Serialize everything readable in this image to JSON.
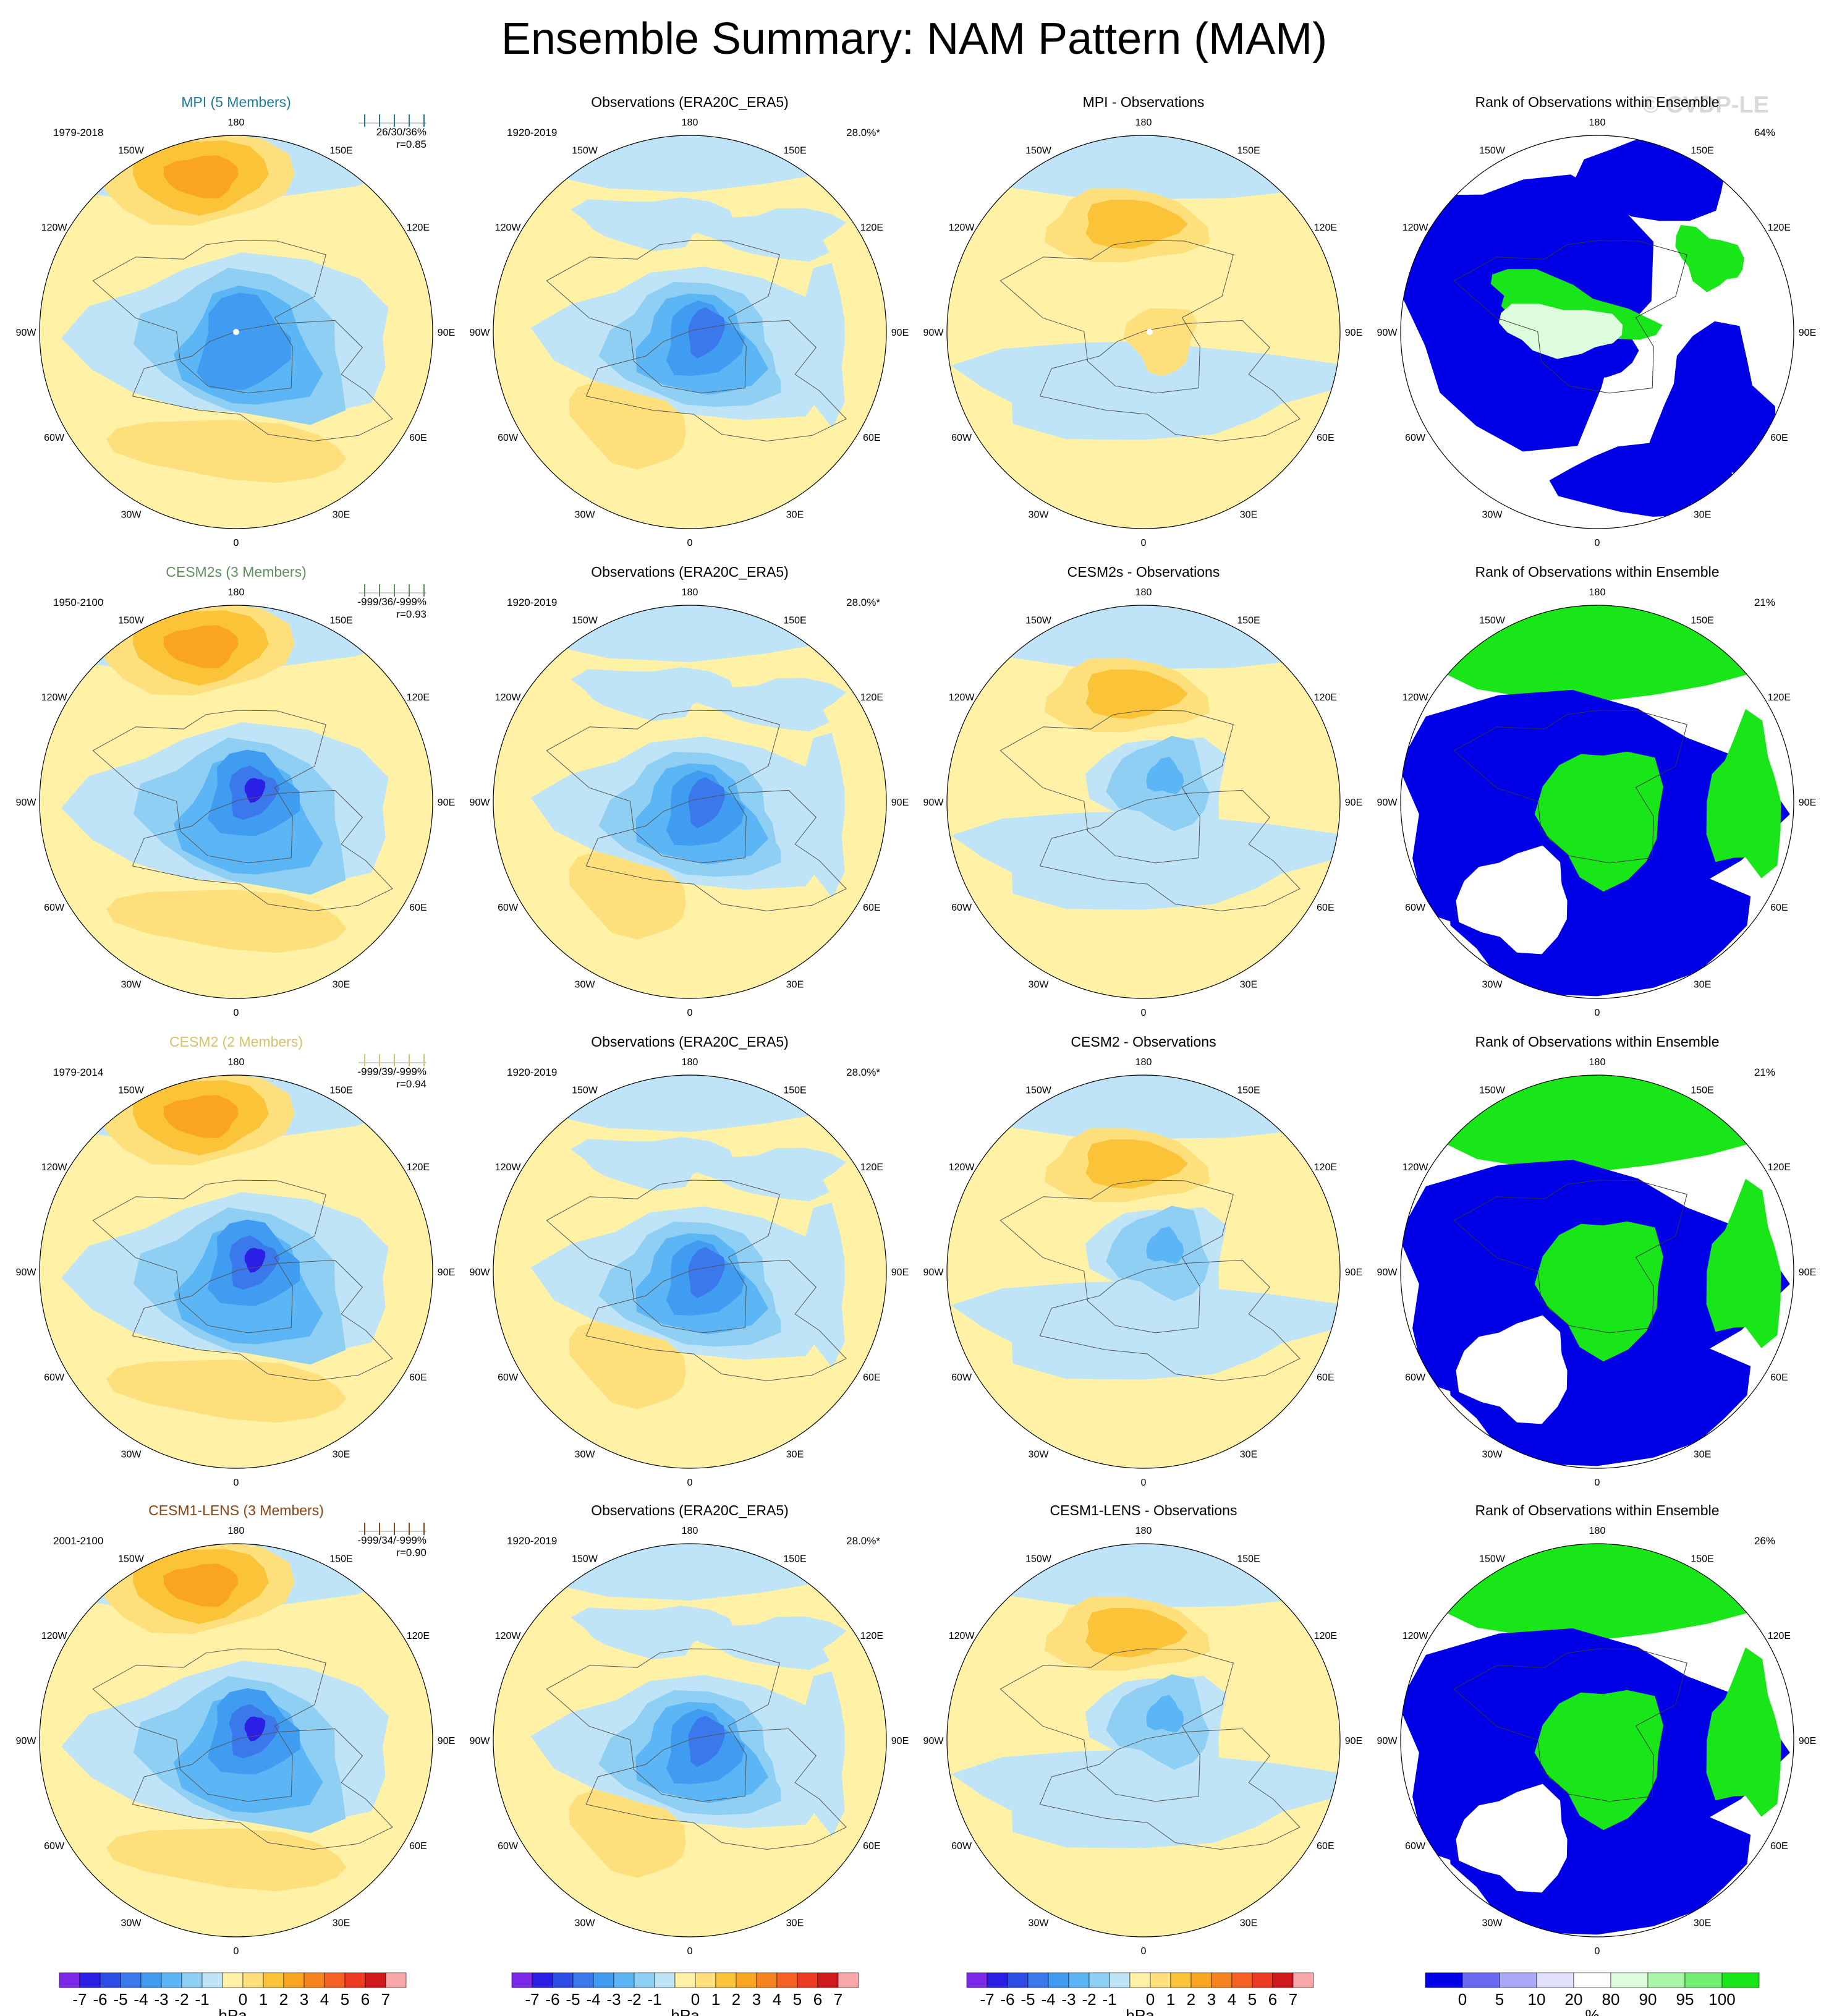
{
  "title": "Ensemble Summary: NAM Pattern (MAM)",
  "watermark": "© CVDP-LE",
  "colors": {
    "neg": [
      "#7b28e8",
      "#2b1fe6",
      "#2e4de6",
      "#3a78ec",
      "#3f9cf0",
      "#5cb6f5",
      "#8fcff4",
      "#bfe3f7"
    ],
    "pos": [
      "#fff2a6",
      "#fde07c",
      "#fbc438",
      "#f9a521",
      "#f88420",
      "#f56224",
      "#ee3a22",
      "#d0191e",
      "#f7a7a7"
    ],
    "rank": [
      "#0000e6",
      "#6a6af2",
      "#a9a9f7",
      "#e0e0fc",
      "#ffffff",
      "#ddfcdd",
      "#a8f5a8",
      "#72ef72",
      "#19e619"
    ],
    "model_titles": {
      "MPI": "#1e7a99",
      "CESM2s": "#5f8f5f",
      "CESM2": "#d6c46a",
      "CESM1-LENS": "#8b4513"
    }
  },
  "meridian_labels": [
    "180",
    "150E",
    "120E",
    "90E",
    "60E",
    "30E",
    "0",
    "30W",
    "60W",
    "90W",
    "120W",
    "150W"
  ],
  "colorbars": {
    "hpa_ticks": [
      "-7",
      "-6",
      "-5",
      "-4",
      "-3",
      "-2",
      "-1",
      "0",
      "1",
      "2",
      "3",
      "4",
      "5",
      "6",
      "7"
    ],
    "hpa_label": "hPa",
    "rank_ticks": [
      "0",
      "5",
      "10",
      "20",
      "80",
      "90",
      "95",
      "100"
    ],
    "rank_label": "%"
  },
  "rows": [
    {
      "model": {
        "title": "MPI (5 Members)",
        "years": "1979-2018",
        "stats": "26/30/36%",
        "corr": "r=0.85"
      },
      "obs": {
        "title": "Observations (ERA20C_ERA5)",
        "years": "1920-2019",
        "pct": "28.0%*"
      },
      "diff": {
        "title": "MPI - Observations"
      },
      "rank": {
        "title": "Rank of Observations within Ensemble",
        "pct": "64%"
      }
    },
    {
      "model": {
        "title": "CESM2s (3 Members)",
        "years": "1950-2100",
        "stats": "-999/36/-999%",
        "corr": "r=0.93"
      },
      "obs": {
        "title": "Observations (ERA20C_ERA5)",
        "years": "1920-2019",
        "pct": "28.0%*"
      },
      "diff": {
        "title": "CESM2s - Observations"
      },
      "rank": {
        "title": "Rank of Observations within Ensemble",
        "pct": "21%"
      }
    },
    {
      "model": {
        "title": "CESM2 (2 Members)",
        "years": "1979-2014",
        "stats": "-999/39/-999%",
        "corr": "r=0.94"
      },
      "obs": {
        "title": "Observations (ERA20C_ERA5)",
        "years": "1920-2019",
        "pct": "28.0%*"
      },
      "diff": {
        "title": "CESM2 - Observations"
      },
      "rank": {
        "title": "Rank of Observations within Ensemble",
        "pct": "21%"
      }
    },
    {
      "model": {
        "title": "CESM1-LENS (3 Members)",
        "years": "2001-2100",
        "stats": "-999/34/-999%",
        "corr": "r=0.90"
      },
      "obs": {
        "title": "Observations (ERA20C_ERA5)",
        "years": "1920-2019",
        "pct": "28.0%*"
      },
      "diff": {
        "title": "CESM1-LENS - Observations"
      },
      "rank": {
        "title": "Rank of Observations within Ensemble",
        "pct": "26%"
      }
    }
  ],
  "chart_data": {
    "type": "heatmap",
    "projection": "north polar stereographic",
    "variable": "NAM pattern (sea level pressure regression)",
    "units": "hPa",
    "levels": [
      -7,
      -6,
      -5,
      -4,
      -3,
      -2,
      -1,
      0,
      1,
      2,
      3,
      4,
      5,
      6,
      7
    ],
    "rank_levels": [
      0,
      5,
      10,
      20,
      80,
      90,
      95,
      100
    ],
    "panels_per_row": [
      "model ensemble mean",
      "observations",
      "model minus observations",
      "rank of observations"
    ]
  }
}
